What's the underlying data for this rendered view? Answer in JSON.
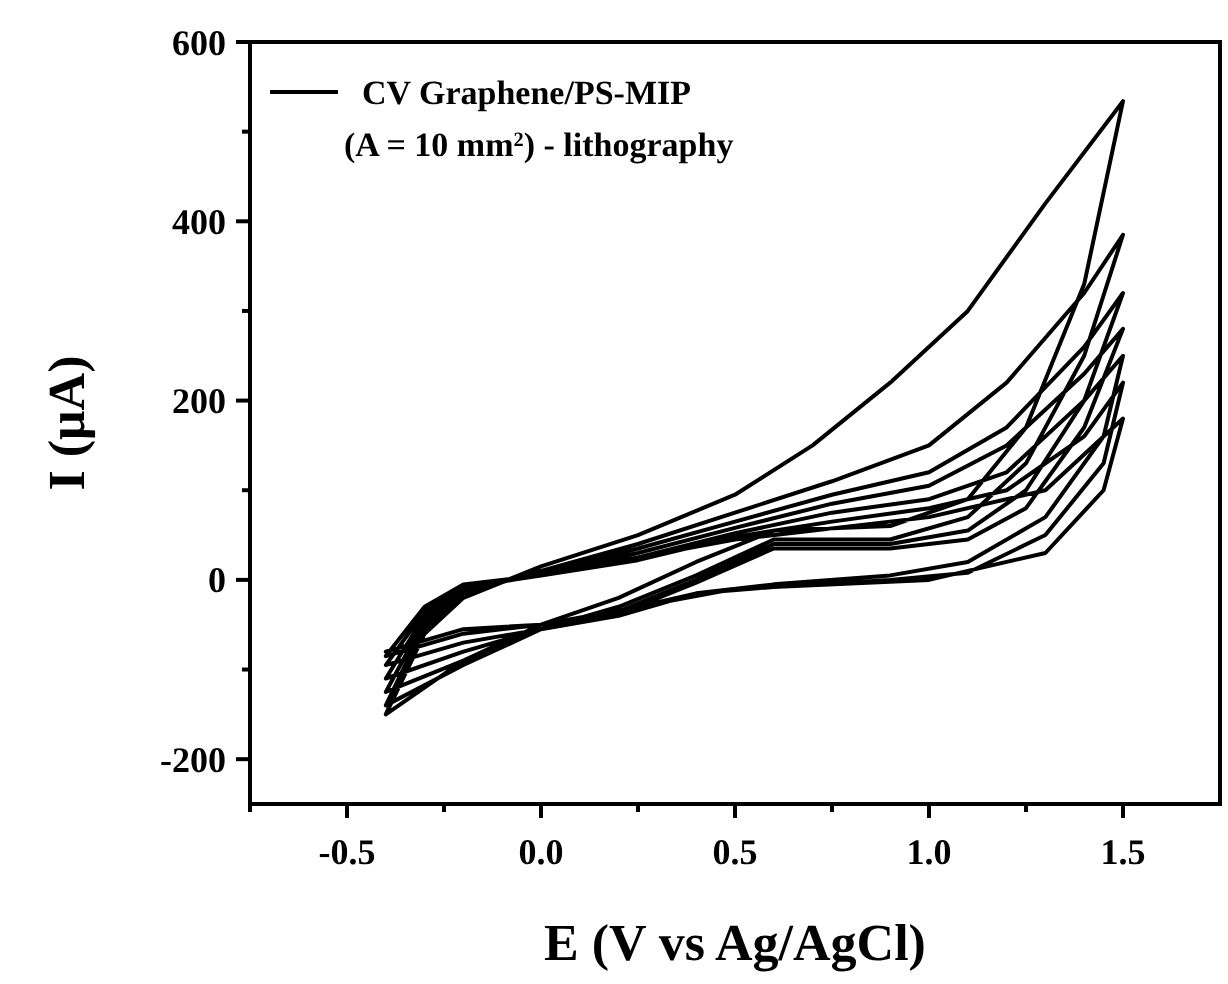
{
  "chart_data": {
    "type": "line",
    "xlabel": "E (V vs Ag/AgCl)",
    "ylabel": "I (μA)",
    "xlim": [
      -0.75,
      1.75
    ],
    "ylim": [
      -250,
      600
    ],
    "xticks": [
      {
        "value": -0.75,
        "label": null
      },
      -0.5,
      {
        "value": -0.25,
        "label": null
      },
      {
        "value": 0,
        "label": "0.0"
      },
      {
        "value": 0.25,
        "label": null
      },
      0.5,
      {
        "value": 0.75,
        "label": null
      },
      {
        "value": 1,
        "label": "1.0"
      },
      {
        "value": 1.25,
        "label": null
      },
      1.5
    ],
    "yticks": [
      -200,
      {
        "value": -100,
        "label": null
      },
      0,
      {
        "value": 100,
        "label": null
      },
      200,
      {
        "value": 300,
        "label": null
      },
      400,
      {
        "value": 500,
        "label": null
      },
      600
    ],
    "legend": "top left",
    "grid": false,
    "marker": "none",
    "line_style": "solid",
    "annotations": [
      "(A = 10 mm$^{2}$) - lithography"
    ],
    "series": [
      {
        "name": "CV Graphene/PS-MIP",
        "color": "#000000",
        "x": [
          -0.4,
          -0.3,
          -0.2,
          0,
          0.25,
          0.5,
          0.7,
          0.9,
          1.1,
          1.3,
          1.5,
          1.4,
          1.25,
          1.1,
          0.9,
          0.6,
          0.4,
          0.2,
          0,
          -0.2,
          -0.4,
          -0.3,
          -0.2,
          0,
          0.25,
          0.5,
          0.75,
          1.0,
          1.2,
          1.4,
          1.5,
          1.4,
          1.25,
          1.1,
          0.9,
          0.6,
          0.4,
          0.2,
          0,
          -0.2,
          -0.4,
          -0.3,
          -0.2,
          0,
          0.25,
          0.5,
          0.75,
          1.0,
          1.2,
          1.4,
          1.5,
          1.4,
          1.25,
          1.1,
          0.9,
          0.6,
          0.4,
          0.2,
          0,
          -0.2,
          -0.4,
          -0.3,
          -0.2,
          0,
          0.25,
          0.5,
          0.75,
          1.0,
          1.2,
          1.4,
          1.5,
          1.4,
          1.25,
          1.1,
          0.9,
          0.6,
          0.4,
          0.2,
          0,
          -0.2,
          -0.4,
          -0.3,
          -0.2,
          0,
          0.25,
          0.5,
          0.75,
          1.0,
          1.2,
          1.4,
          1.5,
          1.45,
          1.3,
          1.1,
          0.9,
          0.6,
          0.4,
          0.2,
          0,
          -0.2,
          -0.4,
          -0.3,
          -0.2,
          0,
          0.25,
          0.5,
          0.75,
          1.0,
          1.2,
          1.4,
          1.5,
          1.45,
          1.3,
          1.1,
          0.9,
          0.6,
          0.4,
          0.2,
          0,
          -0.2,
          -0.4,
          -0.3,
          -0.2,
          0,
          0.5,
          1.0,
          1.3,
          1.5,
          1.45,
          1.3,
          1.0,
          0.5,
          0,
          -0.2,
          -0.4
        ],
        "values": [
          -150,
          -60,
          -20,
          15,
          50,
          95,
          150,
          220,
          300,
          420,
          534,
          330,
          170,
          90,
          60,
          55,
          20,
          -20,
          -50,
          -90,
          -150,
          -55,
          -15,
          10,
          40,
          75,
          110,
          150,
          220,
          320,
          385,
          250,
          130,
          70,
          45,
          45,
          5,
          -30,
          -55,
          -95,
          -140,
          -50,
          -12,
          8,
          35,
          65,
          95,
          120,
          170,
          260,
          320,
          200,
          100,
          55,
          40,
          40,
          0,
          -35,
          -55,
          -90,
          -125,
          -45,
          -10,
          6,
          30,
          58,
          85,
          105,
          150,
          230,
          280,
          170,
          80,
          45,
          35,
          35,
          -3,
          -38,
          -55,
          -80,
          -110,
          -40,
          -8,
          5,
          25,
          52,
          75,
          90,
          120,
          200,
          250,
          160,
          70,
          20,
          5,
          -5,
          -15,
          -40,
          -55,
          -70,
          -95,
          -35,
          -8,
          5,
          22,
          48,
          65,
          80,
          100,
          160,
          220,
          130,
          50,
          8,
          0,
          -8,
          -15,
          -35,
          -50,
          -60,
          -85,
          -30,
          -5,
          5,
          45,
          70,
          100,
          180,
          100,
          30,
          0,
          -10,
          -50,
          -55,
          -80
        ]
      }
    ]
  }
}
